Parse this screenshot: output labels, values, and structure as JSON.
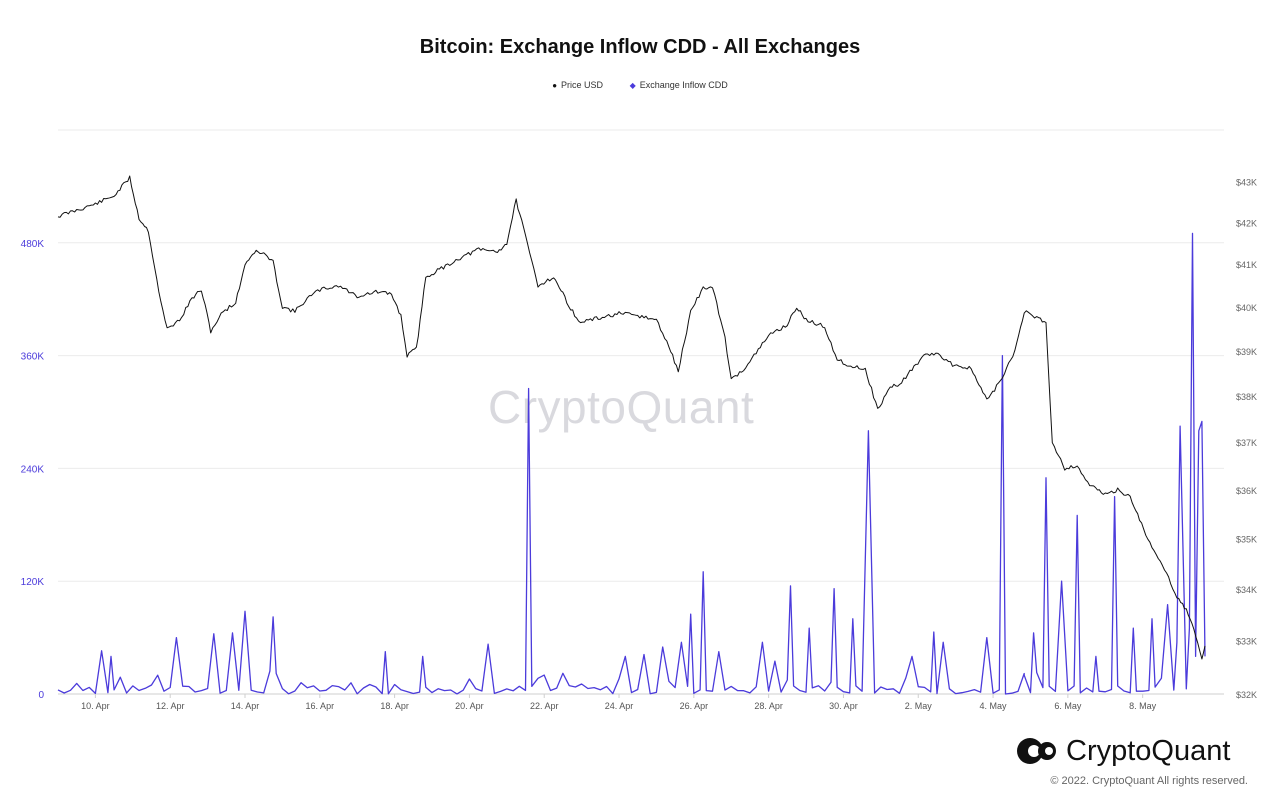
{
  "chart_data": {
    "type": "line",
    "title": "Bitcoin: Exchange Inflow CDD - All Exchanges",
    "legend": [
      {
        "name": "Price USD",
        "color": "#111111",
        "marker": "●"
      },
      {
        "name": "Exchange Inflow CDD",
        "color": "#4b3bdb",
        "marker": "◆"
      }
    ],
    "legend_position": "top-center",
    "grid": true,
    "x_axis": {
      "ticks": [
        "10. Apr",
        "12. Apr",
        "14. Apr",
        "16. Apr",
        "18. Apr",
        "20. Apr",
        "22. Apr",
        "24. Apr",
        "26. Apr",
        "28. Apr",
        "30. Apr",
        "2. May",
        "4. May",
        "6. May",
        "8. May"
      ],
      "range": [
        "2022-04-09",
        "2022-05-09"
      ]
    },
    "y_left": {
      "label_color": "#4b3bdb",
      "ticks": [
        "0",
        "120K",
        "240K",
        "360K",
        "480K"
      ],
      "tick_values": [
        0,
        120000,
        240000,
        360000,
        480000
      ],
      "range": [
        0,
        600000
      ]
    },
    "y_right": {
      "ticks": [
        "$32K",
        "$33K",
        "$34K",
        "$35K",
        "$36K",
        "$37K",
        "$38K",
        "$39K",
        "$40K",
        "$41K",
        "$42K",
        "$43K"
      ],
      "tick_values": [
        32000,
        33000,
        34000,
        35000,
        36000,
        37000,
        38000,
        39000,
        40000,
        41000,
        42000,
        43000
      ],
      "scale": "log",
      "range": [
        32000,
        44300
      ]
    },
    "series": [
      {
        "name": "Price USD",
        "axis": "right",
        "color": "#111111",
        "points": [
          [
            "2022-04-09T00:00",
            42150
          ],
          [
            "2022-04-09T12:00",
            42300
          ],
          [
            "2022-04-10T00:00",
            42450
          ],
          [
            "2022-04-10T12:00",
            42650
          ],
          [
            "2022-04-10T22:00",
            43100
          ],
          [
            "2022-04-11T04:00",
            42100
          ],
          [
            "2022-04-11T10:00",
            41800
          ],
          [
            "2022-04-11T18:00",
            40100
          ],
          [
            "2022-04-11T22:00",
            39500
          ],
          [
            "2022-04-12T06:00",
            39700
          ],
          [
            "2022-04-12T14:00",
            40200
          ],
          [
            "2022-04-12T20:00",
            40400
          ],
          [
            "2022-04-13T02:00",
            39450
          ],
          [
            "2022-04-13T10:00",
            39900
          ],
          [
            "2022-04-13T18:00",
            40100
          ],
          [
            "2022-04-14T00:00",
            41000
          ],
          [
            "2022-04-14T06:00",
            41300
          ],
          [
            "2022-04-14T12:00",
            41250
          ],
          [
            "2022-04-14T18:00",
            41050
          ],
          [
            "2022-04-15T00:00",
            40000
          ],
          [
            "2022-04-15T08:00",
            39900
          ],
          [
            "2022-04-15T16:00",
            40200
          ],
          [
            "2022-04-16T00:00",
            40400
          ],
          [
            "2022-04-16T12:00",
            40500
          ],
          [
            "2022-04-17T00:00",
            40250
          ],
          [
            "2022-04-17T12:00",
            40350
          ],
          [
            "2022-04-17T22:00",
            40300
          ],
          [
            "2022-04-18T04:00",
            39800
          ],
          [
            "2022-04-18T08:00",
            38900
          ],
          [
            "2022-04-18T14:00",
            39050
          ],
          [
            "2022-04-18T20:00",
            40700
          ],
          [
            "2022-04-19T06:00",
            40900
          ],
          [
            "2022-04-19T18:00",
            41150
          ],
          [
            "2022-04-20T06:00",
            41350
          ],
          [
            "2022-04-20T18:00",
            41300
          ],
          [
            "2022-04-21T00:00",
            41500
          ],
          [
            "2022-04-21T06:00",
            42550
          ],
          [
            "2022-04-21T12:00",
            41650
          ],
          [
            "2022-04-21T20:00",
            40500
          ],
          [
            "2022-04-22T06:00",
            40700
          ],
          [
            "2022-04-22T12:00",
            40300
          ],
          [
            "2022-04-22T22:00",
            39650
          ],
          [
            "2022-04-23T12:00",
            39750
          ],
          [
            "2022-04-24T00:00",
            39850
          ],
          [
            "2022-04-24T12:00",
            39800
          ],
          [
            "2022-04-25T00:00",
            39700
          ],
          [
            "2022-04-25T08:00",
            39100
          ],
          [
            "2022-04-25T14:00",
            38550
          ],
          [
            "2022-04-25T22:00",
            39900
          ],
          [
            "2022-04-26T06:00",
            40450
          ],
          [
            "2022-04-26T12:00",
            40450
          ],
          [
            "2022-04-26T20:00",
            39300
          ],
          [
            "2022-04-27T00:00",
            38350
          ],
          [
            "2022-04-27T08:00",
            38600
          ],
          [
            "2022-04-27T16:00",
            38950
          ],
          [
            "2022-04-28T00:00",
            39350
          ],
          [
            "2022-04-28T12:00",
            39600
          ],
          [
            "2022-04-28T18:00",
            40000
          ],
          [
            "2022-04-29T00:00",
            39700
          ],
          [
            "2022-04-29T12:00",
            39550
          ],
          [
            "2022-04-29T20:00",
            38800
          ],
          [
            "2022-04-30T06:00",
            38650
          ],
          [
            "2022-04-30T14:00",
            38600
          ],
          [
            "2022-04-30T22:00",
            37700
          ],
          [
            "2022-05-01T06:00",
            38200
          ],
          [
            "2022-05-01T12:00",
            38250
          ],
          [
            "2022-05-01T20:00",
            38600
          ],
          [
            "2022-05-02T06:00",
            38950
          ],
          [
            "2022-05-02T14:00",
            38900
          ],
          [
            "2022-05-02T22:00",
            38700
          ],
          [
            "2022-05-03T10:00",
            38600
          ],
          [
            "2022-05-03T20:00",
            37900
          ],
          [
            "2022-05-04T06:00",
            38400
          ],
          [
            "2022-05-04T14:00",
            39000
          ],
          [
            "2022-05-04T20:00",
            39900
          ],
          [
            "2022-05-05T04:00",
            39750
          ],
          [
            "2022-05-05T10:00",
            39650
          ],
          [
            "2022-05-05T14:00",
            37000
          ],
          [
            "2022-05-05T22:00",
            36450
          ],
          [
            "2022-05-06T06:00",
            36500
          ],
          [
            "2022-05-06T14:00",
            36100
          ],
          [
            "2022-05-07T00:00",
            35900
          ],
          [
            "2022-05-07T08:00",
            36000
          ],
          [
            "2022-05-07T16:00",
            35850
          ],
          [
            "2022-05-07T22:00",
            35400
          ],
          [
            "2022-05-08T06:00",
            34800
          ],
          [
            "2022-05-08T14:00",
            34400
          ],
          [
            "2022-05-08T22:00",
            33850
          ],
          [
            "2022-05-09T04:00",
            33600
          ],
          [
            "2022-05-09T10:00",
            33100
          ],
          [
            "2022-05-09T14:00",
            32650
          ],
          [
            "2022-05-09T16:00",
            32900
          ]
        ]
      },
      {
        "name": "Exchange Inflow CDD",
        "axis": "left",
        "color": "#4b3bdb",
        "spikes": [
          [
            "2022-04-10T04:00",
            46000
          ],
          [
            "2022-04-10T10:00",
            40000
          ],
          [
            "2022-04-11T16:00",
            20000
          ],
          [
            "2022-04-12T04:00",
            60000
          ],
          [
            "2022-04-13T04:00",
            64000
          ],
          [
            "2022-04-13T16:00",
            65000
          ],
          [
            "2022-04-14T00:00",
            88000
          ],
          [
            "2022-04-14T18:00",
            82000
          ],
          [
            "2022-04-15T12:00",
            12000
          ],
          [
            "2022-04-17T18:00",
            45000
          ],
          [
            "2022-04-18T18:00",
            40000
          ],
          [
            "2022-04-20T12:00",
            53000
          ],
          [
            "2022-04-21T14:00",
            325000
          ],
          [
            "2022-04-22T12:00",
            22000
          ],
          [
            "2022-04-24T04:00",
            40000
          ],
          [
            "2022-04-24T16:00",
            42000
          ],
          [
            "2022-04-25T04:00",
            50000
          ],
          [
            "2022-04-25T16:00",
            55000
          ],
          [
            "2022-04-25T22:00",
            85000
          ],
          [
            "2022-04-26T06:00",
            130000
          ],
          [
            "2022-04-26T16:00",
            45000
          ],
          [
            "2022-04-27T20:00",
            55000
          ],
          [
            "2022-04-28T04:00",
            35000
          ],
          [
            "2022-04-28T14:00",
            115000
          ],
          [
            "2022-04-29T02:00",
            70000
          ],
          [
            "2022-04-29T18:00",
            112000
          ],
          [
            "2022-04-30T06:00",
            80000
          ],
          [
            "2022-04-30T16:00",
            280000
          ],
          [
            "2022-05-01T20:00",
            40000
          ],
          [
            "2022-05-02T10:00",
            66000
          ],
          [
            "2022-05-02T16:00",
            55000
          ],
          [
            "2022-05-03T20:00",
            60000
          ],
          [
            "2022-05-04T06:00",
            360000
          ],
          [
            "2022-05-04T20:00",
            20000
          ],
          [
            "2022-05-05T02:00",
            65000
          ],
          [
            "2022-05-05T10:00",
            230000
          ],
          [
            "2022-05-05T20:00",
            120000
          ],
          [
            "2022-05-06T06:00",
            190000
          ],
          [
            "2022-05-06T18:00",
            40000
          ],
          [
            "2022-05-07T06:00",
            210000
          ],
          [
            "2022-05-07T18:00",
            70000
          ],
          [
            "2022-05-08T06:00",
            80000
          ],
          [
            "2022-05-08T16:00",
            95000
          ],
          [
            "2022-05-08T22:00",
            55000
          ],
          [
            "2022-05-09T00:00",
            285000
          ],
          [
            "2022-05-09T06:00",
            70000
          ],
          [
            "2022-05-09T08:00",
            490000
          ],
          [
            "2022-05-09T10:00",
            40000
          ],
          [
            "2022-05-09T12:00",
            280000
          ],
          [
            "2022-05-09T14:00",
            290000
          ],
          [
            "2022-05-09T16:00",
            40000
          ]
        ]
      }
    ]
  },
  "watermark": "CryptoQuant",
  "brand": {
    "name": "CryptoQuant"
  },
  "footer": {
    "copyright": "© 2022. CryptoQuant All rights reserved."
  }
}
